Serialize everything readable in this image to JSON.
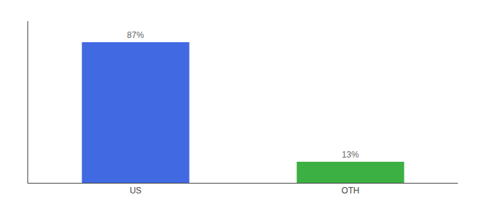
{
  "chart_data": {
    "type": "bar",
    "categories": [
      "US",
      "OTH"
    ],
    "values": [
      87,
      13
    ],
    "value_labels": [
      "87%",
      "13%"
    ],
    "colors": [
      "#4169e1",
      "#3cb043"
    ],
    "ylim": [
      0,
      100
    ],
    "data_labels": true,
    "tick_labels": "x",
    "grid": false
  }
}
